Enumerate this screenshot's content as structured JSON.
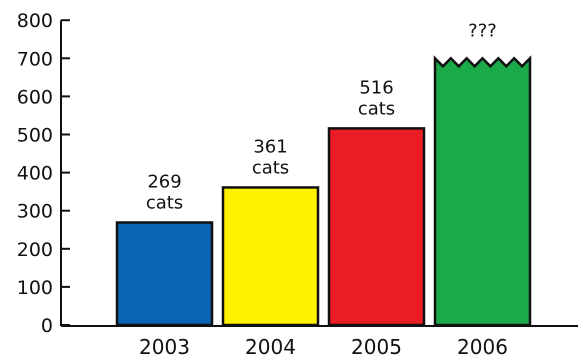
{
  "chart_data": {
    "type": "bar",
    "categories": [
      "2003",
      "2004",
      "2005",
      "2006"
    ],
    "values": [
      269,
      361,
      516,
      700
    ],
    "data_labels": [
      [
        "269",
        "cats"
      ],
      [
        "361",
        "cats"
      ],
      [
        "516",
        "cats"
      ],
      [
        "???"
      ]
    ],
    "colors": [
      "#0a64b4",
      "#fff200",
      "#ec1c24",
      "#1aaa4a"
    ],
    "ylim": [
      0,
      800
    ],
    "yticks": [
      0,
      100,
      200,
      300,
      400,
      500,
      600,
      700,
      800
    ],
    "grid": false,
    "legend": "none"
  }
}
